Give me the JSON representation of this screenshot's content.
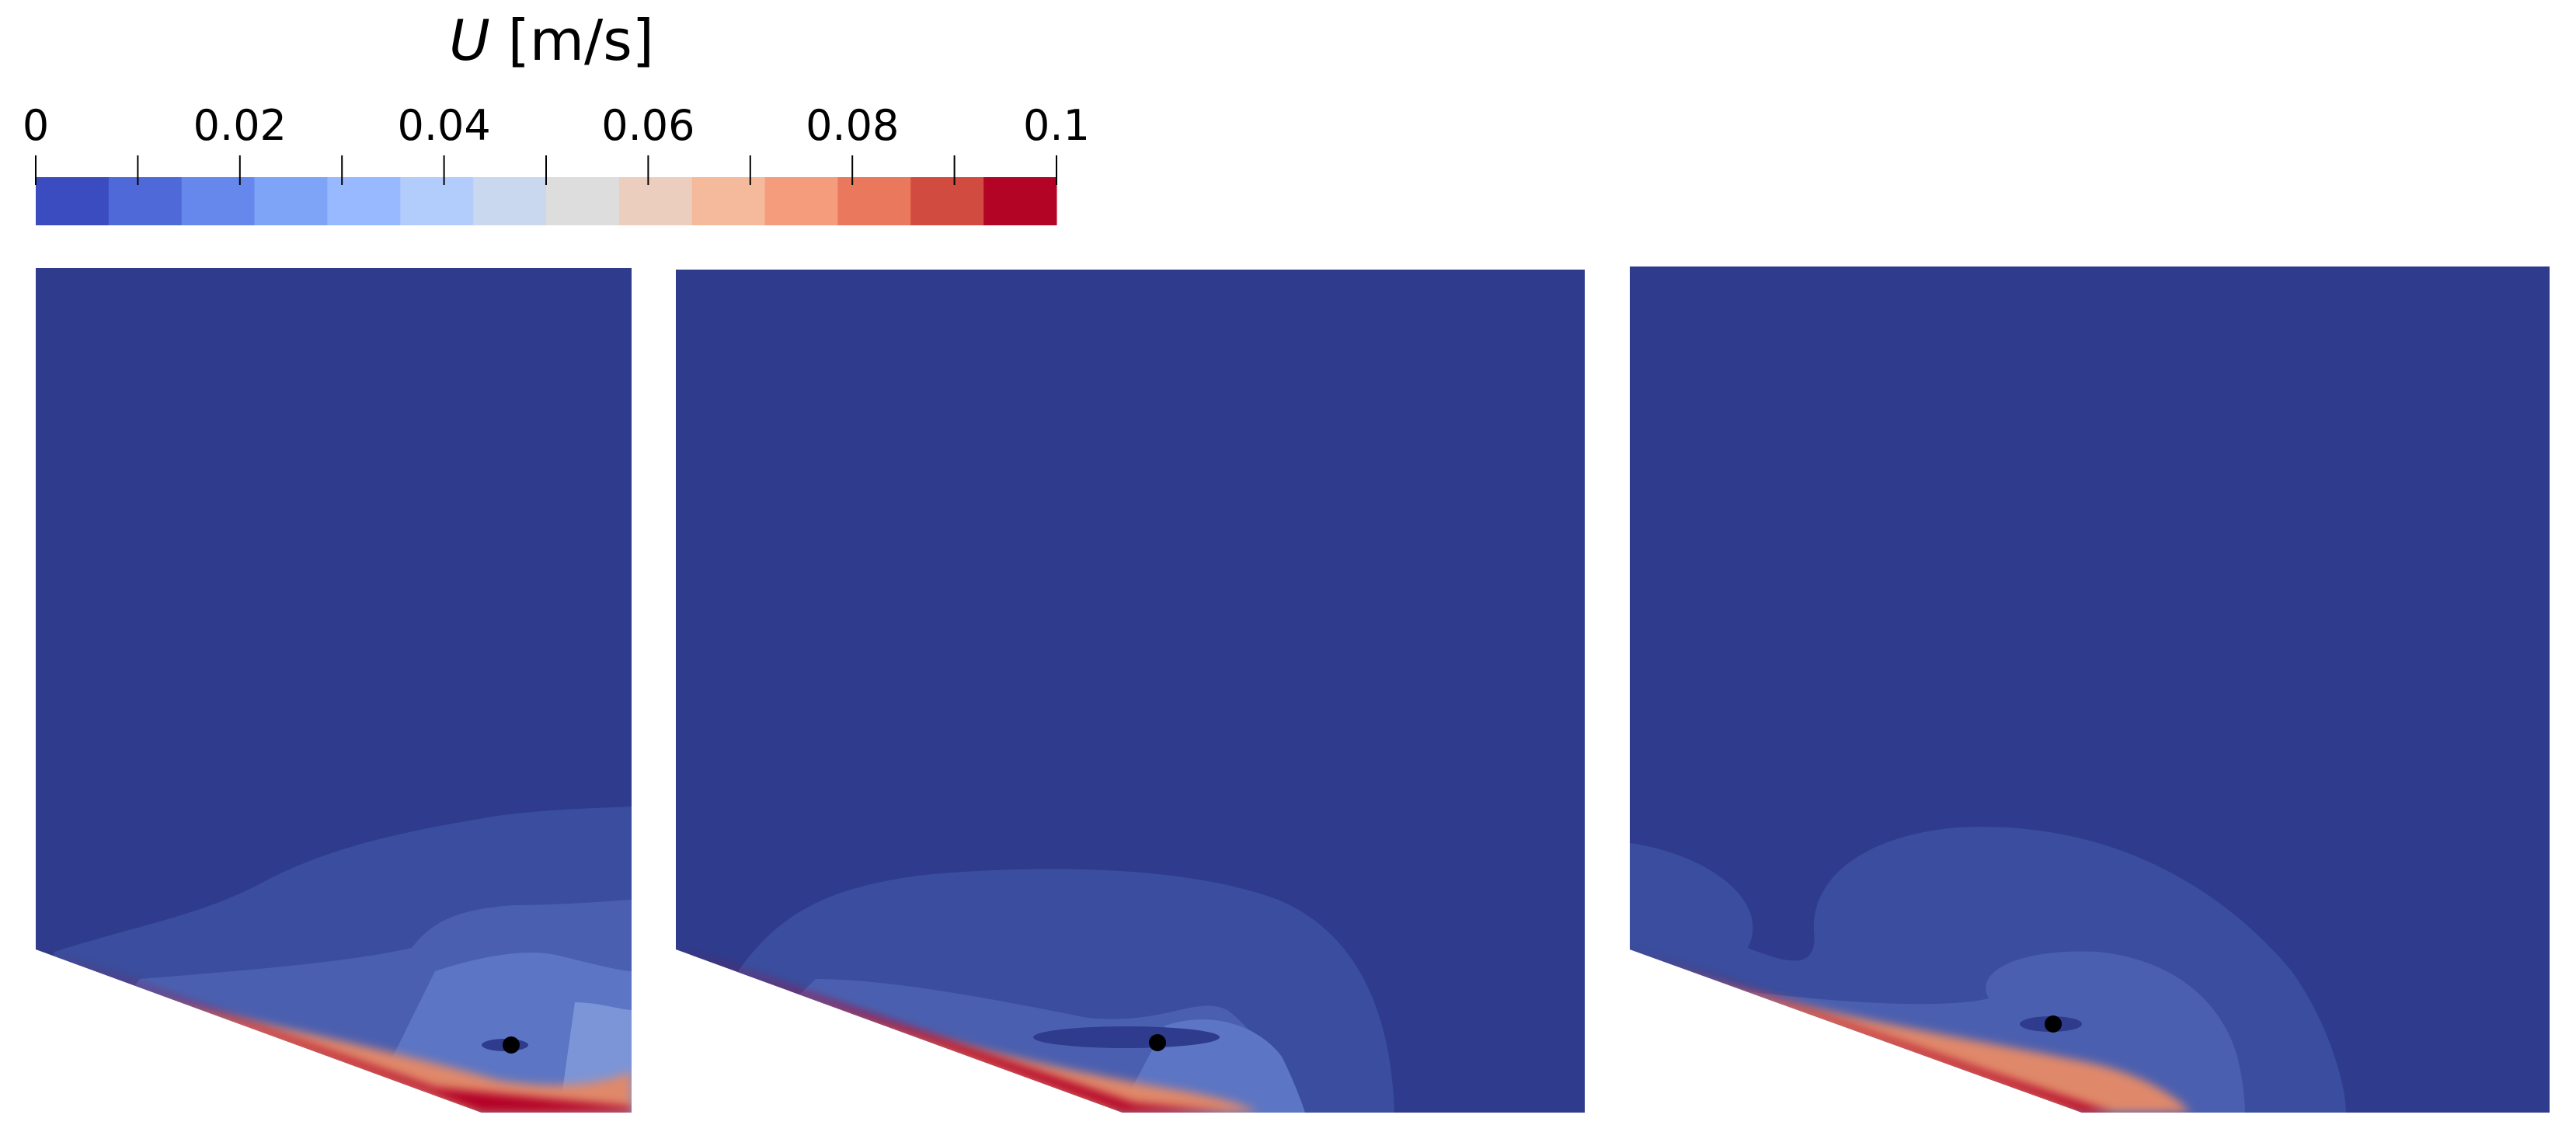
{
  "colorbar": {
    "variable": "U",
    "unit": "[m/s]",
    "tick_labels": [
      "0",
      "0.02",
      "0.04",
      "0.06",
      "0.08",
      "0.1"
    ],
    "colors": [
      "#3b4cc0",
      "#4f69d9",
      "#6688ec",
      "#7ea4f8",
      "#98b9ff",
      "#b2ccfb",
      "#c9d7ef",
      "#dddddd",
      "#eccebf",
      "#f5b99b",
      "#f49c7c",
      "#e9785d",
      "#d24b40",
      "#b40426"
    ]
  },
  "field_colors": {
    "background": "#2f3b8c",
    "band1": "#3a4d9e",
    "band2": "#4a5fb0",
    "band3": "#5c75c4",
    "band4": "#7c95d6",
    "warm1": "#c8b8a8",
    "warm2": "#e0886a",
    "wall": "#b40426"
  },
  "marker_color": "#000000"
}
